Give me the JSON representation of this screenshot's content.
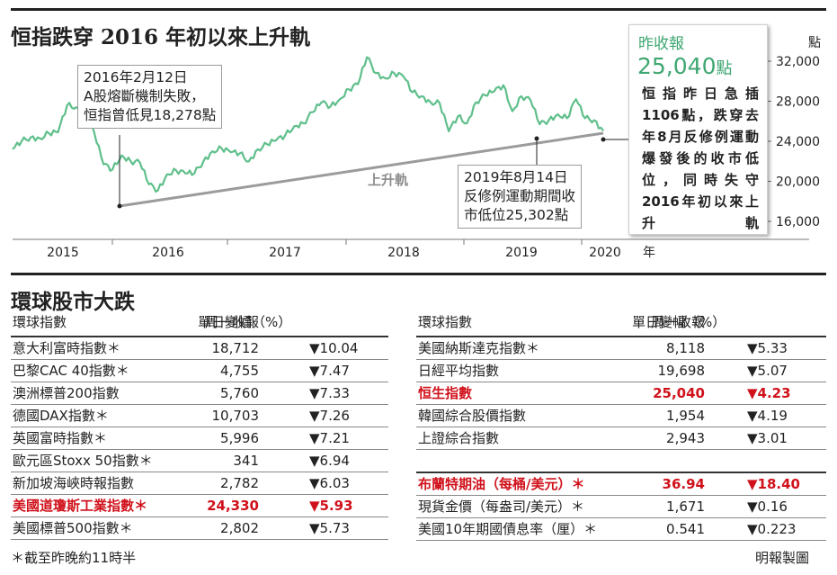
{
  "chart_title": "恒指跌穿 2016 年初以來上升軌",
  "chart_data": {
    "type": "line",
    "series": [
      {
        "x": [
          "2014-10",
          "2014-11",
          "2014-12",
          "2015-01",
          "2015-02",
          "2015-03",
          "2015-04",
          "2015-05",
          "2015-06",
          "2015-07",
          "2015-08",
          "2015-09",
          "2015-10",
          "2015-11",
          "2015-12",
          "2016-01",
          "2016-02",
          "2016-03",
          "2016-04",
          "2016-05",
          "2016-06",
          "2016-07",
          "2016-08",
          "2016-09",
          "2016-10",
          "2016-11",
          "2016-12",
          "2017-01",
          "2017-02",
          "2017-03",
          "2017-04",
          "2017-05",
          "2017-06",
          "2017-07",
          "2017-08",
          "2017-09",
          "2017-10",
          "2017-11",
          "2017-12",
          "2018-01",
          "2018-02",
          "2018-03",
          "2018-04",
          "2018-05",
          "2018-06",
          "2018-07",
          "2018-08",
          "2018-09",
          "2018-10",
          "2018-11",
          "2018-12",
          "2019-01",
          "2019-02",
          "2019-03",
          "2019-04",
          "2019-05",
          "2019-06",
          "2019-07",
          "2019-08",
          "2019-09",
          "2019-10",
          "2019-11",
          "2019-12",
          "2020-01",
          "2020-02",
          "2020-03"
        ],
        "values": [
          23200,
          24000,
          24400,
          24300,
          24800,
          24900,
          27600,
          27400,
          26800,
          24800,
          21700,
          21200,
          22600,
          22000,
          21900,
          19700,
          19100,
          20700,
          21100,
          20800,
          20800,
          22000,
          23000,
          23300,
          22900,
          22800,
          22000,
          23200,
          23700,
          24100,
          24600,
          25500,
          25800,
          26900,
          27900,
          27500,
          28200,
          29200,
          29700,
          32400,
          30800,
          30300,
          30800,
          30500,
          28900,
          28500,
          27900,
          27800,
          25000,
          26500,
          25800,
          27900,
          28600,
          29000,
          29600,
          27000,
          28500,
          28100,
          25700,
          26100,
          26700,
          26300,
          28200,
          26300,
          26100,
          25040
        ]
      }
    ],
    "yticks": [
      "32,000",
      "28,000",
      "24,000",
      "20,000",
      "16,000"
    ],
    "ylim": [
      16000,
      33500
    ],
    "yunit": "點",
    "xticks": [
      "2015",
      "2016",
      "2017",
      "2018",
      "2019",
      "2020"
    ],
    "xunit": "年",
    "trendline_label": "上升軌",
    "annotations": [
      {
        "lines": [
          "2016年2月12日",
          "A股熔斷機制失敗，",
          "恒指曾低見18,278點"
        ]
      },
      {
        "lines": [
          "2019年8月14日",
          "反修例運動期間收",
          "市低位25,302點"
        ]
      }
    ],
    "colors": {
      "line": "#5fbf8b",
      "trend": "#9b9b9b",
      "accent": "#3fa772"
    }
  },
  "infobox": {
    "label": "昨收報",
    "value": "25,040",
    "unit": "點",
    "text": "恒指昨日急插1106點，跌穿去年8月反修例運動爆發後的收市低位，同時失守2016年初以來上升軌"
  },
  "table_title": "環球股市大跌",
  "table": {
    "headers": [
      "環球指數",
      "周一收報",
      "單日變幅（%）"
    ],
    "left_rows": [
      {
        "name": "意大利富時指數＊",
        "close": "18,712",
        "change": "▼10.04"
      },
      {
        "name": "巴黎CAC 40指數＊",
        "close": "4,755",
        "change": "▼7.47"
      },
      {
        "name": "澳洲標普200指數",
        "close": "5,760",
        "change": "▼7.33"
      },
      {
        "name": "德國DAX指數＊",
        "close": "10,703",
        "change": "▼7.26"
      },
      {
        "name": "英國富時指數＊",
        "close": "5,996",
        "change": "▼7.21"
      },
      {
        "name": "歐元區Stoxx 50指數＊",
        "close": "341",
        "change": "▼6.94"
      },
      {
        "name": "新加坡海峽時報指數",
        "close": "2,782",
        "change": "▼6.03"
      },
      {
        "name": "美國道瓊斯工業指數＊",
        "close": "24,330",
        "change": "▼5.93",
        "hl": true
      },
      {
        "name": "美國標普500指數＊",
        "close": "2,802",
        "change": "▼5.73"
      }
    ],
    "right_rows": [
      {
        "name": "美國納斯達克指數＊",
        "close": "8,118",
        "change": "▼5.33"
      },
      {
        "name": "日經平均指數",
        "close": "19,698",
        "change": "▼5.07"
      },
      {
        "name": "恒生指數",
        "close": "25,040",
        "change": "▼4.23",
        "hl": true
      },
      {
        "name": "韓國綜合股價指數",
        "close": "1,954",
        "change": "▼4.19"
      },
      {
        "name": "上證綜合指數",
        "close": "2,943",
        "change": "▼3.01"
      }
    ],
    "right_rows2": [
      {
        "name": "布蘭特期油（每桶/美元）＊",
        "close": "36.94",
        "change": "▼18.40",
        "hl": true
      },
      {
        "name": "現貨金價（每盎司/美元）＊",
        "close": "1,671",
        "change": "▼0.16"
      },
      {
        "name": "美國10年期國債息率（厘）＊",
        "close": "0.541",
        "change": "▼0.223"
      }
    ]
  },
  "footnote": "＊截至昨晚約11時半",
  "credit": "明報製圖"
}
